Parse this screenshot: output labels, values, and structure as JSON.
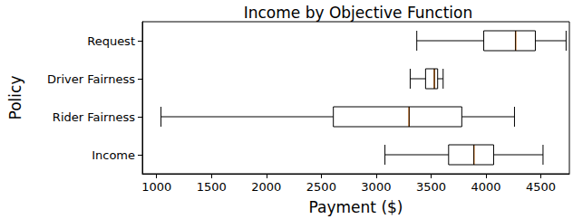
{
  "chart_data": {
    "type": "boxplot",
    "title": "Income by Objective Function",
    "orientation": "horizontal",
    "x_label": "Payment ($)",
    "y_label": "Policy",
    "categories": [
      "Income",
      "Rider Fairness",
      "Driver Fairness",
      "Request"
    ],
    "values": [
      [
        3080,
        3660,
        3890,
        4070,
        4520
      ],
      [
        1040,
        2610,
        3300,
        3780,
        4260
      ],
      [
        3310,
        3450,
        3530,
        3560,
        3610
      ],
      [
        3370,
        3980,
        4270,
        4450,
        4730
      ]
    ],
    "color": "#000000",
    "xlim": [
      870,
      4760
    ],
    "xticks": [
      1000,
      1500,
      2000,
      2500,
      3000,
      3500,
      4000,
      4500
    ],
    "grid": false
  }
}
